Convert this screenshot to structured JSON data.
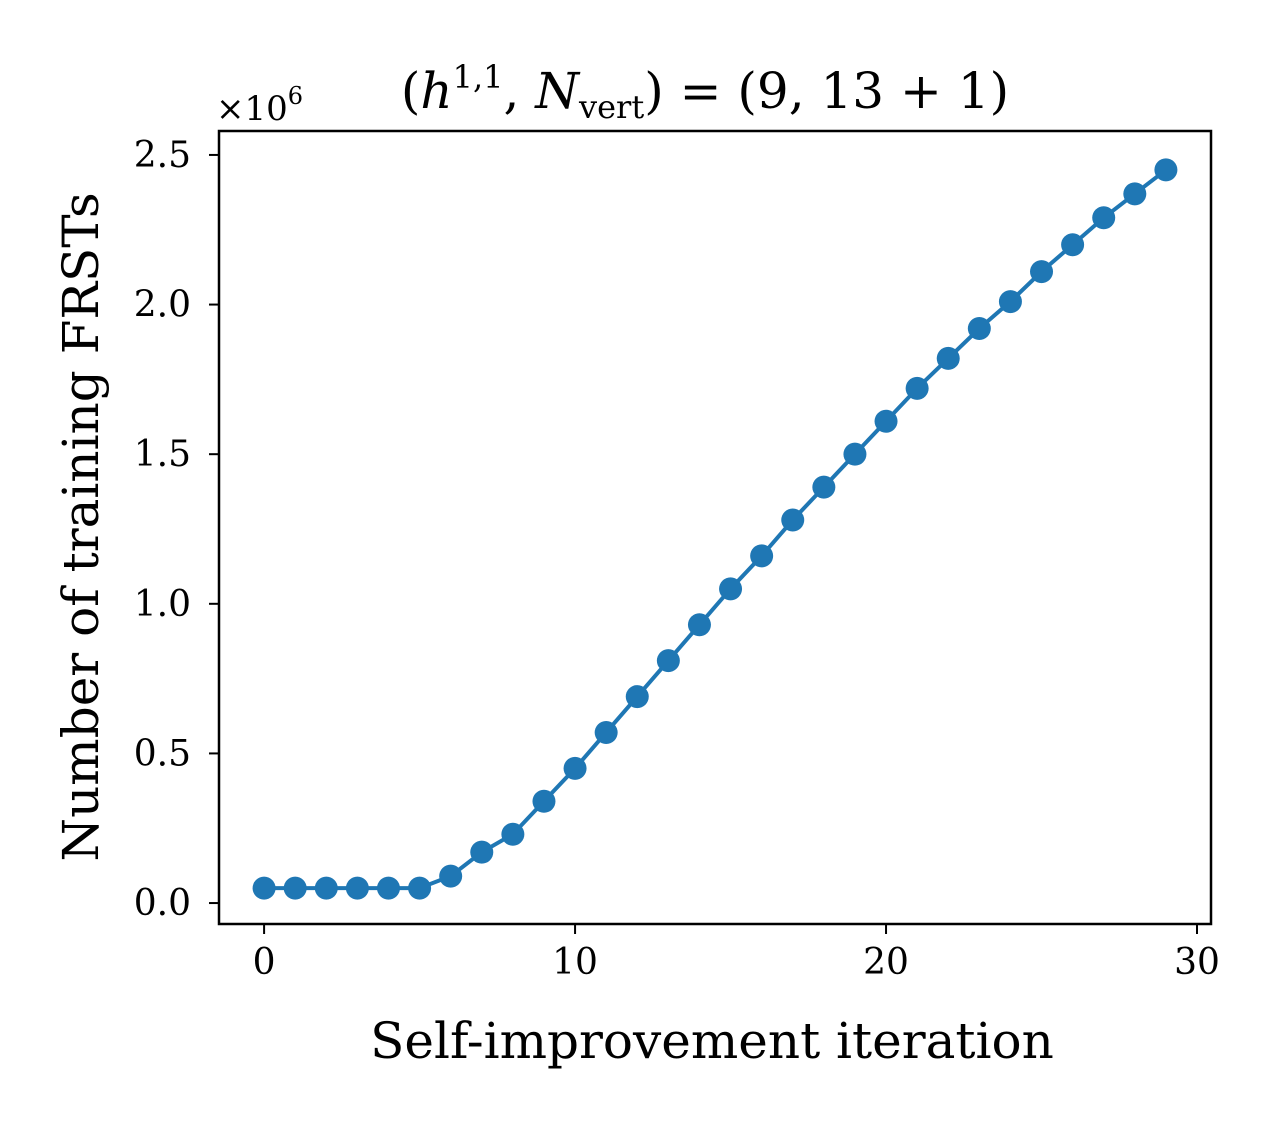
{
  "chart_data": {
    "type": "line",
    "title": {
      "open": "(",
      "h": "h",
      "h_sup": "1,1",
      "comma": ", ",
      "N": "N",
      "N_sub": "vert",
      "rest": ") = (9, 13 + 1)"
    },
    "xlabel": "Self-improvement iteration",
    "ylabel": "Number of training FRSTs",
    "y_offset": {
      "base": "×10",
      "exp": "6"
    },
    "xlim": [
      -1.45,
      30.45
    ],
    "ylim": [
      -0.07,
      2.58
    ],
    "x_ticks": [
      0,
      10,
      20,
      30
    ],
    "x_tick_labels": [
      "0",
      "10",
      "20",
      "30"
    ],
    "y_ticks": [
      0.0,
      0.5,
      1.0,
      1.5,
      2.0,
      2.5
    ],
    "y_tick_labels": [
      "0.0",
      "0.5",
      "1.0",
      "1.5",
      "2.0",
      "2.5"
    ],
    "color": "#1f77b4",
    "series": [
      {
        "name": "training FRSTs",
        "x": [
          0,
          1,
          2,
          3,
          4,
          5,
          6,
          7,
          8,
          9,
          10,
          11,
          12,
          13,
          14,
          15,
          16,
          17,
          18,
          19,
          20,
          21,
          22,
          23,
          24,
          25,
          26,
          27,
          28,
          29
        ],
        "y": [
          0.05,
          0.05,
          0.05,
          0.05,
          0.05,
          0.05,
          0.09,
          0.17,
          0.23,
          0.34,
          0.45,
          0.57,
          0.69,
          0.81,
          0.93,
          1.05,
          1.16,
          1.28,
          1.39,
          1.5,
          1.61,
          1.72,
          1.82,
          1.92,
          2.01,
          2.11,
          2.2,
          2.29,
          2.37,
          2.45
        ]
      }
    ]
  }
}
